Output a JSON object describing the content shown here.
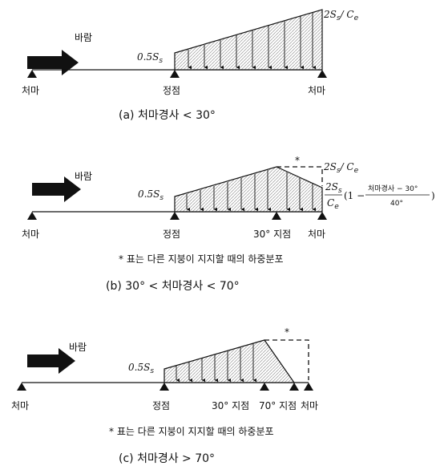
{
  "panel_a": {
    "wind": "바람",
    "left_eave": "처마",
    "ridge": "정점",
    "right_eave": "처마",
    "low_load": "0.5S",
    "low_load_sub": "s",
    "high_load": "2S",
    "high_load_sub": "s",
    "high_load_div": "/ C",
    "high_load_div_sub": "e",
    "caption": "(a) 처마경사 < 30°"
  },
  "panel_b": {
    "wind": "바람",
    "left_eave": "처마",
    "ridge": "정점",
    "point30": "30° 지점",
    "right_eave": "처마",
    "low_load": "0.5S",
    "low_load_sub": "s",
    "high_load": "2S",
    "high_load_sub": "s",
    "high_load_div": "/ C",
    "high_load_div_sub": "e",
    "star": "*",
    "formula_num": "2S",
    "formula_num_sub": "s",
    "formula_den": "C",
    "formula_den_sub": "e",
    "formula_open": "(1 −",
    "formula_frac_num": "처마경사 − 30°",
    "formula_frac_den": "40°",
    "formula_close": ")",
    "note": "* 표는 다른 지붕이 지지할 때의 하중분포",
    "caption": "(b) 30° < 처마경사 < 70°"
  },
  "panel_c": {
    "wind": "바람",
    "left_eave": "처마",
    "ridge": "정점",
    "point30": "30° 지점",
    "point70": "70° 지점",
    "right_eave": "처마",
    "low_load": "0.5S",
    "low_load_sub": "s",
    "star": "*",
    "note": "* 표는 다른 지붕이 지지할 때의 하중분포",
    "caption": "(c) 처마경사 > 70°"
  }
}
